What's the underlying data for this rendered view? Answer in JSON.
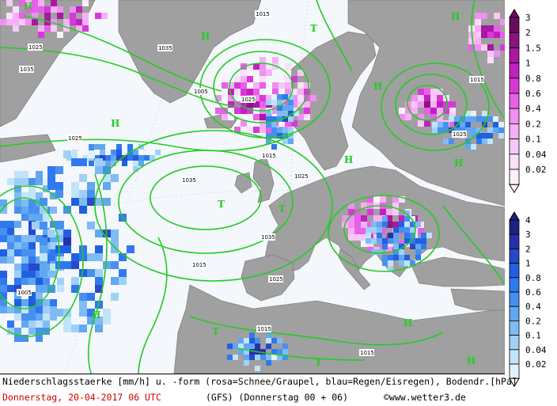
{
  "map": {
    "isobar_labels": [
      "1015",
      "1025",
      "1035",
      "1005",
      "1025",
      "1035",
      "1025",
      "1015",
      "1025",
      "1035",
      "1035",
      "1025",
      "1015",
      "1005",
      "1015",
      "1025",
      "1015",
      "1015"
    ],
    "pressure_centers": [
      "H",
      "H",
      "H",
      "H",
      "T",
      "H",
      "T",
      "T",
      "H",
      "T",
      "T",
      "H",
      "H",
      "H",
      "H"
    ],
    "colors": {
      "isobar": "#22cc22",
      "land": "#a0a0a0",
      "sea": "#f4f7fb",
      "snow": "#e040e0",
      "rain": "#2060e0"
    }
  },
  "legend_snow": {
    "title_icon": "triangle-up-icon",
    "labels": [
      "3",
      "2",
      "1.5",
      "1",
      "0.8",
      "0.6",
      "0.4",
      "0.2",
      "0.1",
      "0.04",
      "0.02"
    ],
    "colors": [
      "#6a0a60",
      "#8a1480",
      "#a818a0",
      "#c020c0",
      "#d838d8",
      "#e860e8",
      "#f090f0",
      "#f6b0f4",
      "#f8c8f8",
      "#fae0fa",
      "#fdf0fd"
    ]
  },
  "legend_rain": {
    "labels": [
      "4",
      "3",
      "2",
      "1",
      "0.8",
      "0.6",
      "0.4",
      "0.2",
      "0.1",
      "0.04",
      "0.02"
    ],
    "colors": [
      "#202080",
      "#2830a8",
      "#2848c8",
      "#2060e0",
      "#3078f0",
      "#4890f0",
      "#60a8f0",
      "#80bcf4",
      "#a0d0f8",
      "#c0e4fa",
      "#e0f2fc"
    ]
  },
  "footer": {
    "description": "Niederschlagsstaerke [mm/h] u. -form (rosa=Schnee/Graupel, blau=Regen/Eisregen), Bodendr.[hPa]",
    "date": "Donnerstag, 20-04-2017  06 UTC",
    "model": "(GFS)  (Donnerstag 00 + 06)",
    "copyright": "©www.wetter3.de"
  }
}
